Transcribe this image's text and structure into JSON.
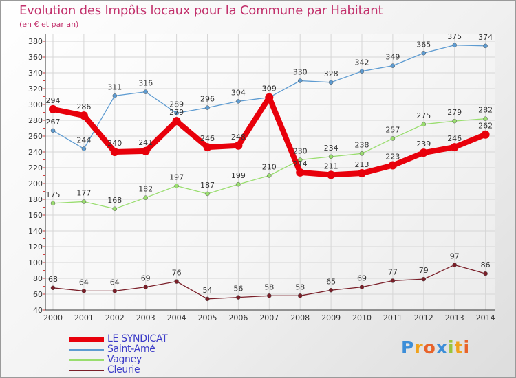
{
  "chart_data": {
    "type": "line",
    "title": "Evolution des Impôts locaux pour la Commune par Habitant",
    "subtitle": "(en € et par an)",
    "x": [
      "2000",
      "2001",
      "2002",
      "2003",
      "2004",
      "2005",
      "2006",
      "2007",
      "2008",
      "2009",
      "2010",
      "2011",
      "2012",
      "2013",
      "2014"
    ],
    "ylim": [
      40,
      380
    ],
    "yticks": [
      40,
      60,
      80,
      100,
      120,
      140,
      160,
      180,
      200,
      220,
      240,
      260,
      280,
      300,
      320,
      340,
      360,
      380
    ],
    "grid": true,
    "series": [
      {
        "name": "LE SYNDICAT",
        "color": "#e8000b",
        "values": [
          294,
          286,
          240,
          241,
          279,
          246,
          248,
          309,
          214,
          211,
          213,
          223,
          239,
          246,
          262
        ]
      },
      {
        "name": "Saint-Amé",
        "color": "#5d9bd1",
        "values": [
          267,
          244,
          311,
          316,
          289,
          296,
          304,
          309,
          330,
          328,
          342,
          349,
          365,
          375,
          374
        ]
      },
      {
        "name": "Vagney",
        "color": "#99dd6e",
        "values": [
          175,
          177,
          168,
          182,
          197,
          187,
          199,
          210,
          230,
          234,
          238,
          257,
          275,
          279,
          282
        ]
      },
      {
        "name": "Cleurie",
        "color": "#7a1e28",
        "values": [
          68,
          64,
          64,
          69,
          76,
          54,
          56,
          58,
          58,
          65,
          69,
          77,
          79,
          97,
          86
        ]
      }
    ]
  },
  "brand": {
    "letters": [
      "P",
      "r",
      "o",
      "x",
      "i",
      "t",
      "i"
    ],
    "colors": [
      "#3c8ed8",
      "#f0a21c",
      "#e8632a",
      "#3c8ed8",
      "#9ac43c",
      "#f0a21c",
      "#e8632a"
    ]
  }
}
